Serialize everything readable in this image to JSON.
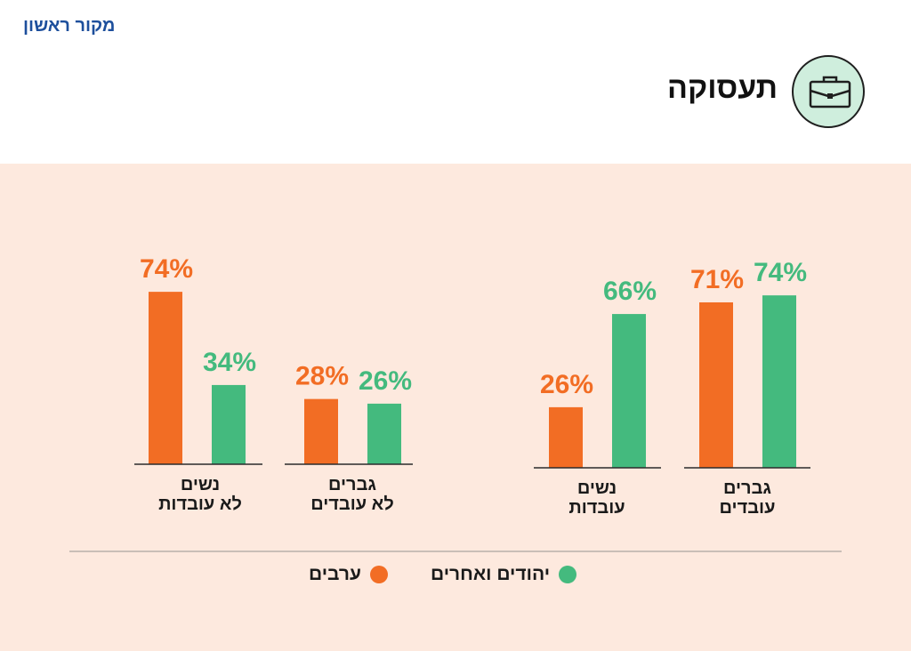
{
  "brand": {
    "logo_text": "מקור ראשון"
  },
  "header": {
    "title": "תעסוקה",
    "icon": "briefcase-icon"
  },
  "colors": {
    "arabs": "#f26d24",
    "jews_others": "#44ba7e",
    "background": "#fde9de",
    "axis": "#2b2b2b"
  },
  "chart_data": {
    "type": "bar",
    "title": "תעסוקה",
    "categories": [
      "גברים\nעובדים",
      "נשים\nעובדות",
      "גברים\nלא עובדים",
      "נשים\nלא עובדות"
    ],
    "series": [
      {
        "name": "יהודים ואחרים",
        "values": [
          74,
          66,
          26,
          34
        ],
        "labels": [
          "74%",
          "66%",
          "26%",
          "34%"
        ]
      },
      {
        "name": "ערבים",
        "values": [
          71,
          26,
          28,
          74
        ],
        "labels": [
          "71%",
          "26%",
          "28%",
          "74%"
        ]
      }
    ],
    "unit": "%",
    "legend_position": "bottom",
    "grid": false
  },
  "legend": [
    {
      "key": "jews_others",
      "label": "יהודים ואחרים"
    },
    {
      "key": "arabs",
      "label": "ערבים"
    }
  ]
}
